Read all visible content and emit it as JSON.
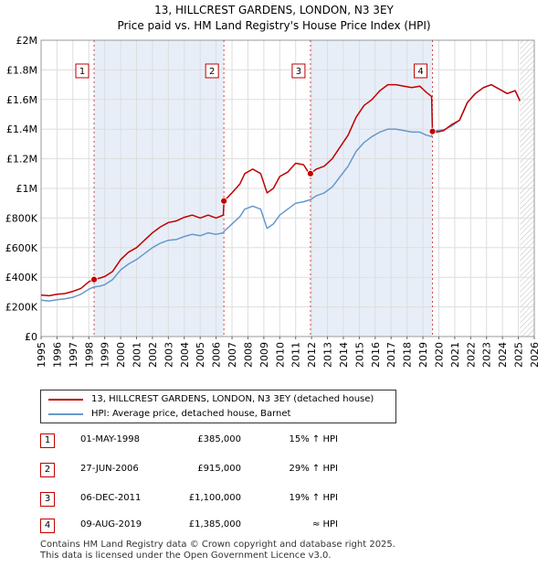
{
  "header": {
    "title": "13, HILLCREST GARDENS, LONDON, N3 3EY",
    "subtitle": "Price paid vs. HM Land Registry's House Price Index (HPI)"
  },
  "colors": {
    "price_line": "#c00000",
    "hpi_line": "#6699cc",
    "shade": "#e8eef8",
    "marker_border": "#c00000"
  },
  "chart_data": {
    "type": "line",
    "title": "Price paid vs. HM Land Registry's House Price Index (HPI)",
    "xlim": [
      1995,
      2026
    ],
    "ylim": [
      0,
      2000000
    ],
    "x_ticks": [
      "1995",
      "1996",
      "1997",
      "1998",
      "1999",
      "2000",
      "2001",
      "2002",
      "2003",
      "2004",
      "2005",
      "2006",
      "2007",
      "2008",
      "2009",
      "2010",
      "2011",
      "2012",
      "2013",
      "2014",
      "2015",
      "2016",
      "2017",
      "2018",
      "2019",
      "2020",
      "2021",
      "2022",
      "2023",
      "2024",
      "2025",
      "2026"
    ],
    "y_ticks": [
      {
        "value": 0,
        "label": "£0"
      },
      {
        "value": 200000,
        "label": "£200K"
      },
      {
        "value": 400000,
        "label": "£400K"
      },
      {
        "value": 600000,
        "label": "£600K"
      },
      {
        "value": 800000,
        "label": "£800K"
      },
      {
        "value": 1000000,
        "label": "£1M"
      },
      {
        "value": 1200000,
        "label": "£1.2M"
      },
      {
        "value": 1400000,
        "label": "£1.4M"
      },
      {
        "value": 1600000,
        "label": "£1.6M"
      },
      {
        "value": 1800000,
        "label": "£1.8M"
      },
      {
        "value": 2000000,
        "label": "£2M"
      }
    ],
    "grid": true,
    "forecast_from": 2025.1,
    "series": [
      {
        "name": "13, HILLCREST GARDENS, LONDON, N3 3EY (detached house)",
        "x": [
          1995.0,
          1995.5,
          1996.0,
          1996.5,
          1997.0,
          1997.5,
          1998.0,
          1998.33,
          1998.7,
          1999.0,
          1999.5,
          2000.0,
          2000.5,
          2001.0,
          2001.5,
          2002.0,
          2002.5,
          2003.0,
          2003.5,
          2004.0,
          2004.5,
          2005.0,
          2005.5,
          2006.0,
          2006.45,
          2006.5,
          2007.0,
          2007.5,
          2007.8,
          2008.3,
          2008.8,
          2009.2,
          2009.6,
          2010.0,
          2010.5,
          2011.0,
          2011.5,
          2011.8,
          2011.93,
          2012.3,
          2012.8,
          2013.3,
          2013.8,
          2014.3,
          2014.8,
          2015.3,
          2015.8,
          2016.3,
          2016.8,
          2017.3,
          2017.8,
          2018.3,
          2018.8,
          2019.2,
          2019.55,
          2019.6,
          2019.9,
          2020.3,
          2020.8,
          2021.3,
          2021.8,
          2022.3,
          2022.8,
          2023.3,
          2023.8,
          2024.3,
          2024.8,
          2025.1
        ],
        "y": [
          280000,
          275000,
          285000,
          290000,
          305000,
          325000,
          370000,
          385000,
          395000,
          405000,
          440000,
          520000,
          570000,
          600000,
          650000,
          700000,
          740000,
          770000,
          780000,
          805000,
          820000,
          800000,
          820000,
          800000,
          820000,
          915000,
          970000,
          1030000,
          1100000,
          1130000,
          1100000,
          970000,
          1000000,
          1080000,
          1110000,
          1170000,
          1160000,
          1110000,
          1100000,
          1130000,
          1150000,
          1200000,
          1280000,
          1360000,
          1480000,
          1560000,
          1600000,
          1660000,
          1700000,
          1700000,
          1690000,
          1680000,
          1690000,
          1650000,
          1620000,
          1385000,
          1380000,
          1390000,
          1430000,
          1460000,
          1580000,
          1640000,
          1680000,
          1700000,
          1670000,
          1640000,
          1660000,
          1590000
        ]
      },
      {
        "name": "HPI: Average price, detached house, Barnet",
        "x": [
          1995.0,
          1995.5,
          1996.0,
          1996.5,
          1997.0,
          1997.5,
          1998.0,
          1998.33,
          1998.7,
          1999.0,
          1999.5,
          2000.0,
          2000.5,
          2001.0,
          2001.5,
          2002.0,
          2002.5,
          2003.0,
          2003.5,
          2004.0,
          2004.5,
          2005.0,
          2005.5,
          2006.0,
          2006.45,
          2006.5,
          2007.0,
          2007.5,
          2007.8,
          2008.3,
          2008.8,
          2009.2,
          2009.6,
          2010.0,
          2010.5,
          2011.0,
          2011.5,
          2011.8,
          2011.93,
          2012.3,
          2012.8,
          2013.3,
          2013.8,
          2014.3,
          2014.8,
          2015.3,
          2015.8,
          2016.3,
          2016.8,
          2017.3,
          2017.8,
          2018.3,
          2018.8,
          2019.2,
          2019.55,
          2019.6,
          2019.9,
          2020.3,
          2020.8,
          2021.3,
          2021.8,
          2022.3,
          2022.8,
          2023.3,
          2023.8,
          2024.3,
          2024.8,
          2025.1
        ],
        "y": [
          245000,
          240000,
          248000,
          255000,
          265000,
          285000,
          320000,
          335000,
          340000,
          350000,
          385000,
          450000,
          490000,
          520000,
          560000,
          600000,
          630000,
          650000,
          655000,
          675000,
          690000,
          680000,
          700000,
          690000,
          700000,
          710000,
          760000,
          810000,
          860000,
          880000,
          860000,
          730000,
          760000,
          820000,
          860000,
          900000,
          910000,
          920000,
          925000,
          950000,
          970000,
          1010000,
          1080000,
          1150000,
          1250000,
          1310000,
          1350000,
          1380000,
          1400000,
          1400000,
          1390000,
          1380000,
          1380000,
          1360000,
          1350000,
          1385000,
          1390000,
          1395000,
          1420000,
          1460000,
          1580000,
          1640000,
          1680000,
          1700000,
          1670000,
          1640000,
          1660000,
          1590000
        ]
      }
    ],
    "sales": [
      {
        "num": "1",
        "x": 1998.33,
        "y": 385000
      },
      {
        "num": "2",
        "x": 2006.49,
        "y": 915000
      },
      {
        "num": "3",
        "x": 2011.93,
        "y": 1100000
      },
      {
        "num": "4",
        "x": 2019.6,
        "y": 1385000
      }
    ]
  },
  "legend": {
    "items": [
      {
        "label": "13, HILLCREST GARDENS, LONDON, N3 3EY (detached house)"
      },
      {
        "label": "HPI: Average price, detached house, Barnet"
      }
    ]
  },
  "table": {
    "rows": [
      {
        "num": "1",
        "date": "01-MAY-1998",
        "price": "£385,000",
        "hpi": "15% ↑ HPI"
      },
      {
        "num": "2",
        "date": "27-JUN-2006",
        "price": "£915,000",
        "hpi": "29% ↑ HPI"
      },
      {
        "num": "3",
        "date": "06-DEC-2011",
        "price": "£1,100,000",
        "hpi": "19% ↑ HPI"
      },
      {
        "num": "4",
        "date": "09-AUG-2019",
        "price": "£1,385,000",
        "hpi": "≈ HPI"
      }
    ]
  },
  "footer": {
    "line1": "Contains HM Land Registry data © Crown copyright and database right 2025.",
    "line2": "This data is licensed under the Open Government Licence v3.0."
  }
}
